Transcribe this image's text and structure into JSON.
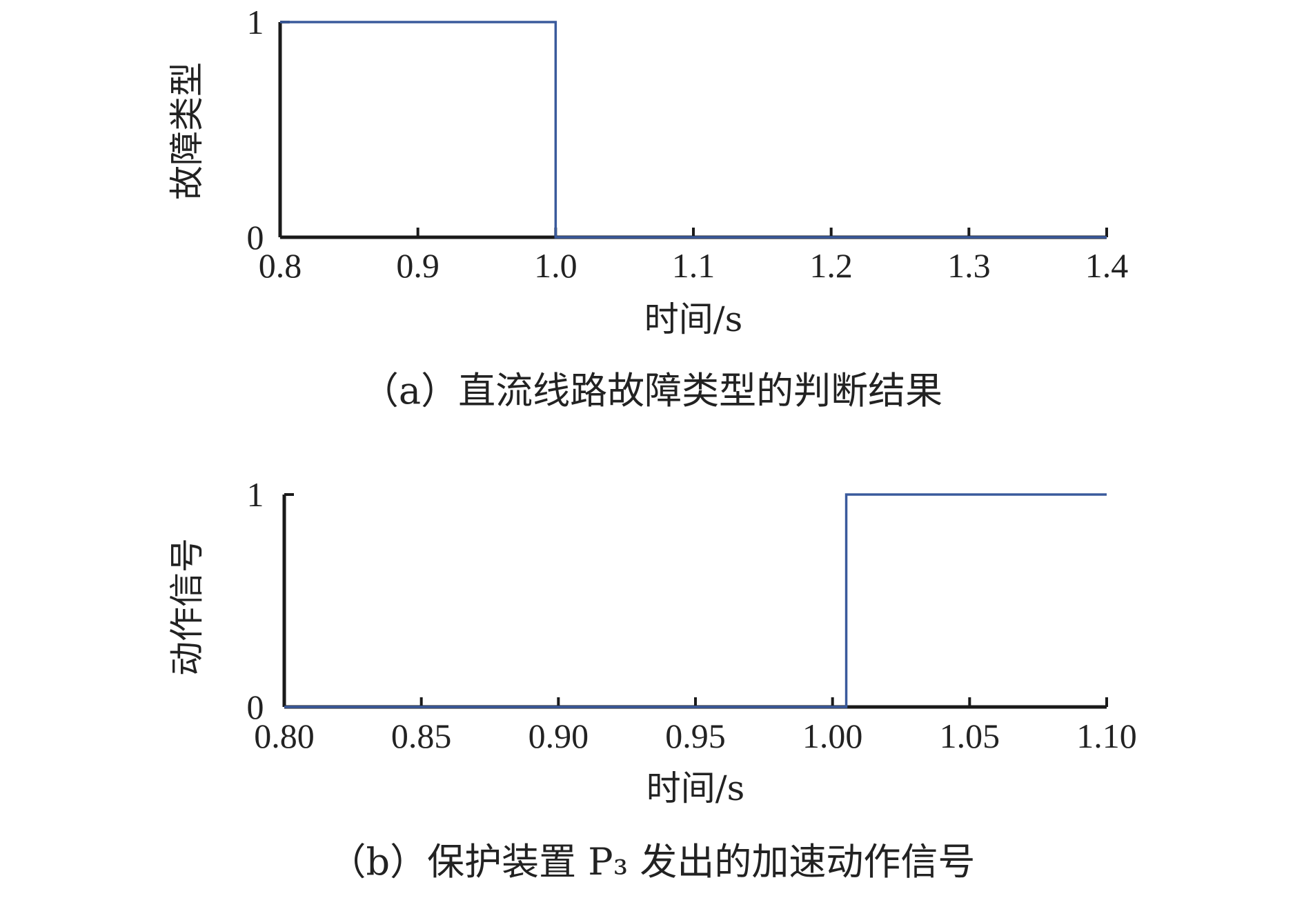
{
  "chart_data": [
    {
      "type": "line",
      "step": true,
      "xlabel": "时间/s",
      "ylabel": "故障类型",
      "caption": "（a）直流线路故障类型的判断结果",
      "xlim": [
        0.8,
        1.4
      ],
      "ylim": [
        0,
        1
      ],
      "xticks": [
        0.8,
        0.9,
        1.0,
        1.1,
        1.2,
        1.3,
        1.4
      ],
      "xtick_labels": [
        "0.8",
        "0.9",
        "1.0",
        "1.1",
        "1.2",
        "1.3",
        "1.4"
      ],
      "yticks": [
        0,
        1
      ],
      "ytick_labels": [
        "0",
        "1"
      ],
      "grid": false,
      "series": [
        {
          "color": "#3a5a9c",
          "x": [
            0.8,
            1.0,
            1.0,
            1.4
          ],
          "y": [
            1,
            1,
            0,
            0
          ]
        }
      ]
    },
    {
      "type": "line",
      "step": true,
      "xlabel": "时间/s",
      "ylabel": "动作信号",
      "caption": "（b）保护装置 P₃ 发出的加速动作信号",
      "xlim": [
        0.8,
        1.1
      ],
      "ylim": [
        0,
        1
      ],
      "xticks": [
        0.8,
        0.85,
        0.9,
        0.95,
        1.0,
        1.05,
        1.1
      ],
      "xtick_labels": [
        "0.80",
        "0.85",
        "0.90",
        "0.95",
        "1.00",
        "1.05",
        "1.10"
      ],
      "yticks": [
        0,
        1
      ],
      "ytick_labels": [
        "0",
        "1"
      ],
      "grid": false,
      "series": [
        {
          "color": "#3a5a9c",
          "x": [
            0.8,
            1.005,
            1.005,
            1.1
          ],
          "y": [
            0,
            0,
            1,
            1
          ]
        }
      ]
    }
  ]
}
